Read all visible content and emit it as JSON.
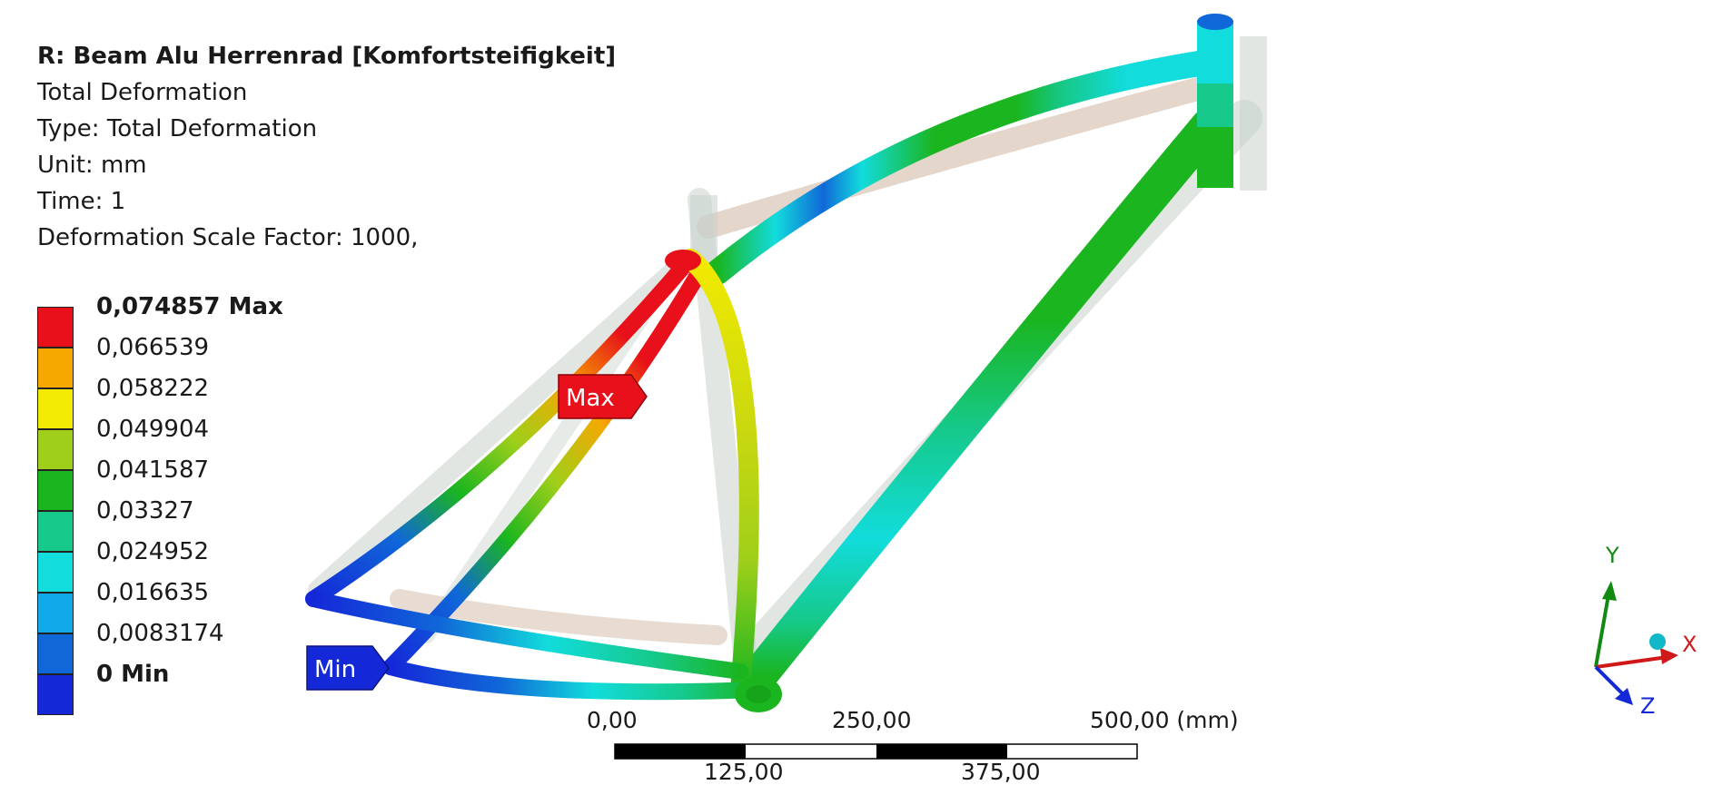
{
  "header": {
    "title": "R: Beam Alu Herrenrad [Komfortsteifigkeit]",
    "lines": [
      "Total Deformation",
      "Type: Total Deformation",
      "Unit: mm",
      "Time: 1",
      "Deformation Scale Factor: 1000,"
    ]
  },
  "legend": {
    "entries": [
      {
        "label": "0,074857 Max",
        "color": "#e8101a",
        "bold": true
      },
      {
        "label": "0,066539",
        "color": "#f4a800",
        "bold": false
      },
      {
        "label": "0,058222",
        "color": "#f2ea00",
        "bold": false
      },
      {
        "label": "0,049904",
        "color": "#9fcf1a",
        "bold": false
      },
      {
        "label": "0,041587",
        "color": "#1ab51f",
        "bold": false
      },
      {
        "label": "0,03327",
        "color": "#16c98a",
        "bold": false
      },
      {
        "label": "0,024952",
        "color": "#12dcdc",
        "bold": false
      },
      {
        "label": "0,016635",
        "color": "#10a8e6",
        "bold": false
      },
      {
        "label": "0,0083174",
        "color": "#1068d8",
        "bold": false
      },
      {
        "label": "0 Min",
        "color": "#1428d8",
        "bold": true
      }
    ]
  },
  "markers": {
    "max": "Max",
    "min": "Min"
  },
  "scale_bar": {
    "top_labels": [
      "0,00",
      "250,00",
      "500,00 (mm)"
    ],
    "bottom_labels": [
      "125,00",
      "375,00"
    ]
  },
  "triad": {
    "x": "X",
    "y": "Y",
    "z": "Z",
    "colors": {
      "x": "#d01818",
      "y": "#128a12",
      "z": "#1428d8"
    }
  }
}
